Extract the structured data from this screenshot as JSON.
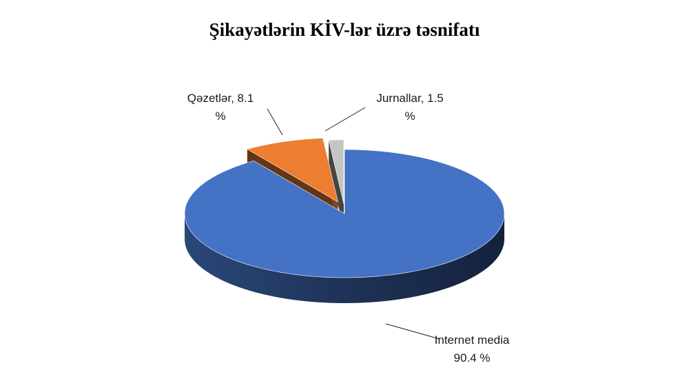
{
  "chart_data": {
    "type": "pie",
    "title": "Şikayətlərin KİV-lər üzrə təsnifatı",
    "unit": "%",
    "slices": [
      {
        "name": "Internet media",
        "value": 90.4,
        "color": "#4472C4",
        "label_line1": "Internet media",
        "label_line2": "90.4 %"
      },
      {
        "name": "Qəzetlər",
        "value": 8.1,
        "color": "#ED7D31",
        "label_line1": "Qəzetlər, 8.1",
        "label_line2": "%"
      },
      {
        "name": "Jurnallar",
        "value": 1.5,
        "color": "#A5A5A5",
        "label_line1": "Jurnallar, 1.5",
        "label_line2": "%"
      }
    ],
    "legend": "none",
    "style": "3d-exploded"
  }
}
